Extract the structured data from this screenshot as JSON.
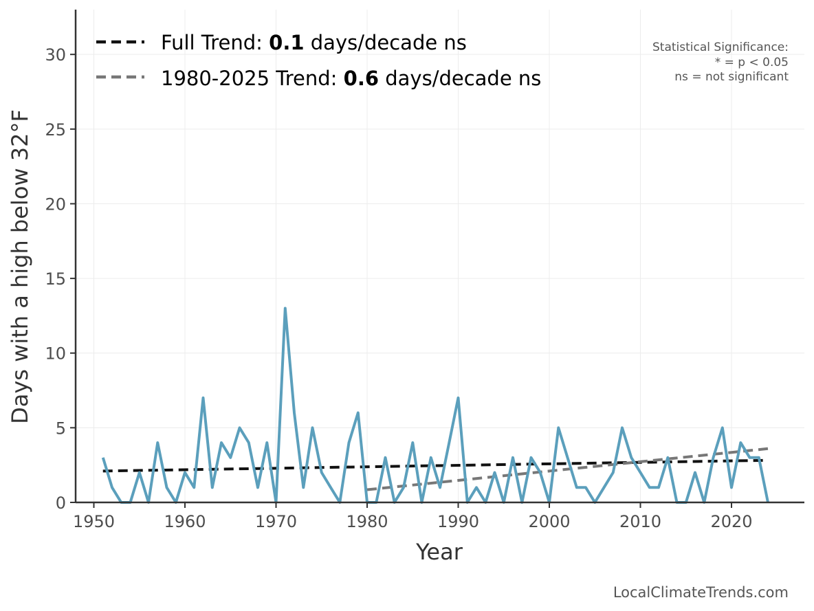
{
  "chart_data": {
    "type": "line",
    "title": "",
    "xlabel": "Year",
    "ylabel": "Days with a high below 32°F",
    "xlim": [
      1948,
      2028
    ],
    "ylim": [
      0,
      33
    ],
    "xticks": [
      1950,
      1960,
      1970,
      1980,
      1990,
      2000,
      2010,
      2020
    ],
    "yticks": [
      0,
      5,
      10,
      15,
      20,
      25,
      30
    ],
    "grid": true,
    "series": [
      {
        "name": "Days with a high below 32°F",
        "color": "#5b9fbc",
        "x": [
          1951,
          1952,
          1953,
          1954,
          1955,
          1956,
          1957,
          1958,
          1959,
          1960,
          1961,
          1962,
          1963,
          1964,
          1965,
          1966,
          1967,
          1968,
          1969,
          1970,
          1971,
          1972,
          1973,
          1974,
          1975,
          1976,
          1977,
          1978,
          1979,
          1980,
          1981,
          1982,
          1983,
          1984,
          1985,
          1986,
          1987,
          1988,
          1989,
          1990,
          1991,
          1992,
          1993,
          1994,
          1995,
          1996,
          1997,
          1998,
          1999,
          2000,
          2001,
          2002,
          2003,
          2004,
          2005,
          2006,
          2007,
          2008,
          2009,
          2010,
          2011,
          2012,
          2013,
          2014,
          2015,
          2016,
          2017,
          2018,
          2019,
          2020,
          2021,
          2022,
          2023,
          2024
        ],
        "values": [
          3,
          1,
          0,
          0,
          2,
          0,
          4,
          1,
          0,
          2,
          1,
          7,
          1,
          4,
          3,
          5,
          4,
          1,
          4,
          0,
          13,
          6,
          1,
          5,
          2,
          1,
          0,
          4,
          6,
          0,
          0,
          3,
          0,
          1,
          4,
          0,
          3,
          1,
          4,
          7,
          0,
          1,
          0,
          2,
          0,
          3,
          0,
          3,
          2,
          0,
          5,
          3,
          1,
          1,
          0,
          1,
          2,
          5,
          3,
          2,
          1,
          1,
          3,
          0,
          0,
          2,
          0,
          3,
          5,
          1,
          4,
          3,
          3,
          0
        ]
      }
    ],
    "trends": [
      {
        "name": "Full Trend",
        "color": "#111111",
        "x": [
          1951,
          2024
        ],
        "y": [
          2.1,
          2.82
        ]
      },
      {
        "name": "1980-2025 Trend",
        "color": "#777777",
        "x": [
          1980,
          2024
        ],
        "y": [
          0.85,
          3.6
        ]
      }
    ],
    "legend": {
      "placement": "top-left",
      "items": [
        {
          "prefix": "Full Trend: ",
          "value": "0.1",
          "suffix": " days/decade ns",
          "color": "#111111"
        },
        {
          "prefix": "1980-2025 Trend: ",
          "value": "0.6",
          "suffix": " days/decade ns",
          "color": "#777777"
        }
      ]
    },
    "significance_note": {
      "line1": "Statistical Significance:",
      "line2": "* = p < 0.05",
      "line3": "ns = not significant"
    },
    "credit": "LocalClimateTrends.com"
  }
}
